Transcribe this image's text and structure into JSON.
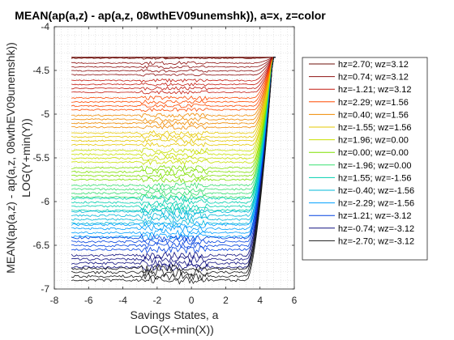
{
  "chart_data": {
    "type": "line",
    "title": "MEAN(ap(a,z) - ap(a,z, 08wthEV09unemshk)), a=x, z=color",
    "xlabel_lines": [
      "Savings States, a",
      "LOG(X+min(X))"
    ],
    "ylabel_lines": [
      "MEAN(ap(a,z) - ap(a,z, 08wthEV09unemshk))",
      "LOG(Y+min(Y))"
    ],
    "xlim": [
      -8,
      6
    ],
    "ylim": [
      -7,
      -4
    ],
    "xticks": [
      -8,
      -6,
      -4,
      -2,
      0,
      2,
      4,
      6
    ],
    "yticks": [
      -7,
      -6.5,
      -6,
      -5.5,
      -5,
      -4.5,
      -4
    ],
    "xtick_labels": [
      "-8",
      "-6",
      "-4",
      "-2",
      "0",
      "2",
      "4",
      "6"
    ],
    "ytick_labels": [
      "-7",
      "-6.5",
      "-6",
      "-5.5",
      "-5",
      "-4.5",
      "-4"
    ],
    "grid": "minor dotted",
    "legend_position": "outside-right",
    "x_range_of_data": [
      -7.0,
      4.9
    ],
    "series": [
      {
        "name": "hz=2.70; wz=3.12",
        "color": "#6e0f0a",
        "start_y": -4.36,
        "end_y": -4.35
      },
      {
        "name": "hz=0.74; wz=3.12",
        "color": "#8e1010",
        "start_y": -4.55,
        "end_y": -4.35
      },
      {
        "name": "hz=-1.21; wz=3.12",
        "color": "#c41a10",
        "start_y": -4.75,
        "end_y": -4.35
      },
      {
        "name": "hz=2.29; wz=1.56",
        "color": "#ff4a00",
        "start_y": -4.95,
        "end_y": -4.35
      },
      {
        "name": "hz=0.40; wz=1.56",
        "color": "#f08a00",
        "start_y": -5.15,
        "end_y": -4.35
      },
      {
        "name": "hz=-1.55; wz=1.56",
        "color": "#e6c800",
        "start_y": -5.35,
        "end_y": -4.35
      },
      {
        "name": "hz=1.96; wz=0.00",
        "color": "#c8e000",
        "start_y": -5.55,
        "end_y": -4.35
      },
      {
        "name": "hz=0.00; wz=0.00",
        "color": "#7fe000",
        "start_y": -5.75,
        "end_y": -4.35
      },
      {
        "name": "hz=-1.96; wz=0.00",
        "color": "#38e070",
        "start_y": -5.95,
        "end_y": -4.35
      },
      {
        "name": "hz=1.55; wz=-1.56",
        "color": "#00d0b0",
        "start_y": -6.1,
        "end_y": -4.35
      },
      {
        "name": "hz=-0.40; wz=-1.56",
        "color": "#00b8d8",
        "start_y": -6.25,
        "end_y": -4.35
      },
      {
        "name": "hz=-2.29; wz=-1.56",
        "color": "#00a0ff",
        "start_y": -6.4,
        "end_y": -4.35
      },
      {
        "name": "hz=1.21; wz=-3.12",
        "color": "#0040e0",
        "start_y": -6.55,
        "end_y": -4.35
      },
      {
        "name": "hz=-0.74; wz=-3.12",
        "color": "#101080",
        "start_y": -6.75,
        "end_y": -4.35
      },
      {
        "name": "hz=-2.70; wz=-3.12",
        "color": "#1a1a1a",
        "start_y": -6.9,
        "end_y": -4.35
      }
    ]
  }
}
